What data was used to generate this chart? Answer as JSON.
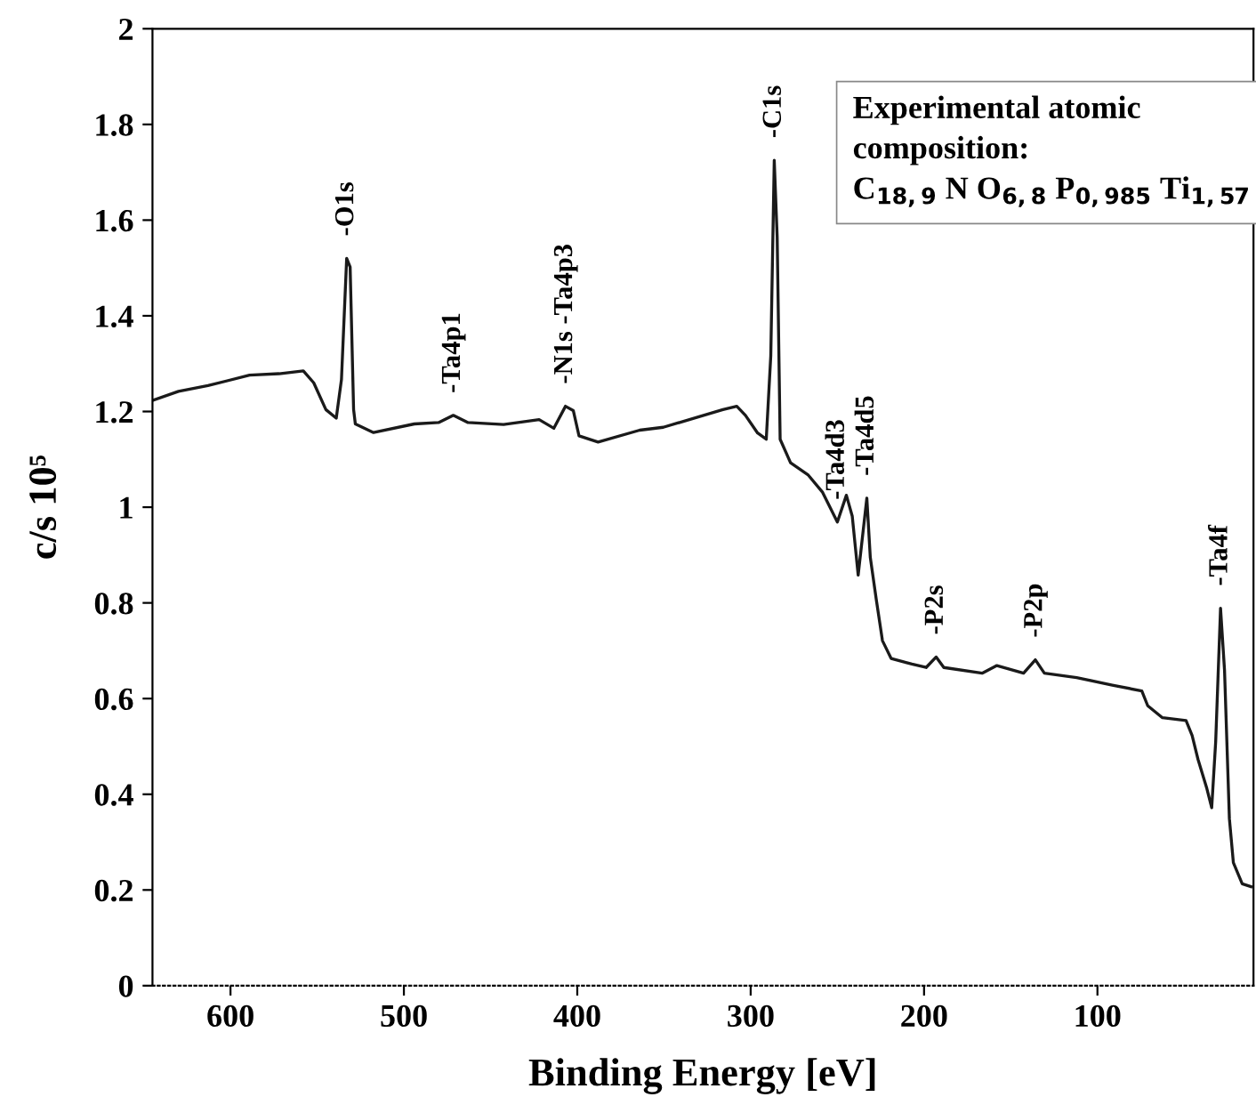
{
  "chart_data": {
    "type": "line",
    "xlabel": "Binding Energy [eV]",
    "ylabel": "c/s 10⁵",
    "xlim": [
      645,
      10
    ],
    "xticks": [
      600,
      500,
      400,
      300,
      200,
      100
    ],
    "ylim": [
      0,
      2
    ],
    "yticks": [
      0,
      0.2,
      0.4,
      0.6,
      0.8,
      1,
      1.2,
      1.4,
      1.6,
      1.8,
      2
    ],
    "marker": "none",
    "line_style": "solid",
    "series": [
      {
        "color": "#1a1a1a",
        "x": [
          645,
          630,
          613,
          589,
          572,
          558,
          552,
          545,
          539,
          536,
          533,
          531,
          529,
          528,
          517.5,
          494,
          480,
          471.5,
          463,
          442.5,
          422,
          413.5,
          406.8,
          402.3,
          399,
          388,
          364,
          350.4,
          316,
          308,
          303,
          296,
          291,
          288.4,
          286.4,
          284.7,
          283,
          277,
          267,
          258.5,
          250,
          244.8,
          241.4,
          238,
          233,
          231,
          227.6,
          224,
          219,
          207,
          198.8,
          193,
          188.6,
          166.5,
          158,
          142.6,
          135.8,
          130.6,
          112,
          91.4,
          74.4,
          71,
          62.5,
          48.9,
          45.4,
          42,
          36.9,
          34.1,
          31.8,
          29,
          26.7,
          23.9,
          21.6,
          16.5,
          11.4
        ],
        "values": [
          1.223,
          1.242,
          1.254,
          1.276,
          1.279,
          1.285,
          1.26,
          1.204,
          1.186,
          1.267,
          1.52,
          1.502,
          1.204,
          1.174,
          1.156,
          1.174,
          1.177,
          1.192,
          1.177,
          1.173,
          1.183,
          1.165,
          1.211,
          1.202,
          1.149,
          1.136,
          1.161,
          1.167,
          1.204,
          1.211,
          1.192,
          1.155,
          1.142,
          1.316,
          1.725,
          1.564,
          1.142,
          1.093,
          1.068,
          1.031,
          0.969,
          1.025,
          0.981,
          0.858,
          1.019,
          0.895,
          0.808,
          0.721,
          0.684,
          0.672,
          0.665,
          0.687,
          0.665,
          0.653,
          0.669,
          0.653,
          0.681,
          0.653,
          0.644,
          0.628,
          0.616,
          0.585,
          0.56,
          0.554,
          0.523,
          0.473,
          0.412,
          0.372,
          0.51,
          0.789,
          0.659,
          0.349,
          0.257,
          0.213,
          0.207
        ]
      }
    ],
    "annotations": [
      {
        "text": "-O1s",
        "x": 533,
        "y": 1.52
      },
      {
        "text": "-Ta4p1",
        "x": 471.5,
        "y": 1.192
      },
      {
        "text": "-N1s -Ta4p3",
        "x": 406.8,
        "y": 1.211
      },
      {
        "text": "-C1s",
        "x": 286.4,
        "y": 1.725
      },
      {
        "text": "-Ta4d3",
        "x": 250,
        "y": 0.969
      },
      {
        "text": "-Ta4d5",
        "x": 233,
        "y": 1.019
      },
      {
        "text": "-P2s",
        "x": 193,
        "y": 0.687
      },
      {
        "text": "-P2p",
        "x": 135.8,
        "y": 0.681
      },
      {
        "text": "-Ta4f",
        "x": 29,
        "y": 0.789
      },
      "Experimental atomic\ncomposition:\nC$_{18,9}$ N O$_{6,8}$ P$_{0,985}$ Ti$_{1,57}$"
    ]
  }
}
